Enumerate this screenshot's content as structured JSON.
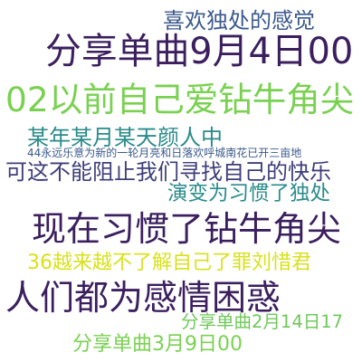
{
  "words": [
    {
      "text": "喜欢独处的感觉",
      "color": "#3b5a8c"
    },
    {
      "text": "分享单曲9月4日00",
      "color": "#3b1f5e"
    },
    {
      "text": "02以前自己爱钻牛角尖",
      "color": "#7ad151"
    },
    {
      "text": "某年某月某天颜人中",
      "color": "#2a8b8a"
    },
    {
      "text": "44永远乐意为新的一轮月亮和日落欢呼城南花已开三亩地",
      "color": "#3b5a8c"
    },
    {
      "text": "可这不能阻止我们寻找自己的快乐",
      "color": "#3e3e7a"
    },
    {
      "text": "演变为习惯了独处",
      "color": "#2a8b8a"
    },
    {
      "text": "现在习惯了钻牛角尖",
      "color": "#3b1f5e"
    },
    {
      "text": "36越来越不了解自己了罪刘惜君",
      "color": "#d8e21c"
    },
    {
      "text": "人们都为感情困惑",
      "color": "#3b1f5e"
    },
    {
      "text": "分享单曲2月14日17",
      "color": "#6fc85a"
    },
    {
      "text": "分享单曲3月9日00",
      "color": "#7ad151"
    }
  ]
}
